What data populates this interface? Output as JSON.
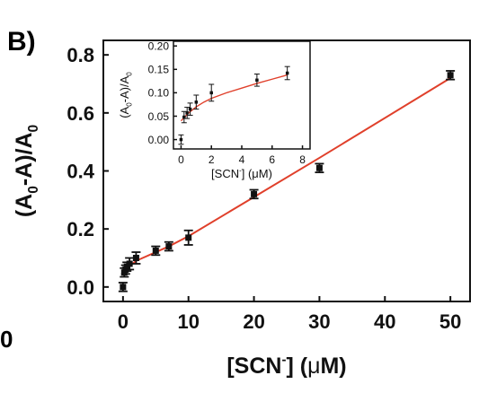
{
  "panel_label": "B)",
  "edge_fragment": "0",
  "chart_data": [
    {
      "type": "scatter",
      "role": "main",
      "xlabel": {
        "bracket": "[SCN",
        "sup": "-",
        "rest": "] (",
        "mu": "μ",
        "unit": "M)"
      },
      "ylabel": {
        "p1": "(A",
        "s1": "0",
        "p2": "-A)/A",
        "s2": "0"
      },
      "xlim": [
        -3,
        53
      ],
      "ylim": [
        -0.05,
        0.85
      ],
      "xticks": [
        0,
        10,
        20,
        30,
        40,
        50
      ],
      "xtick_labels": [
        "0",
        "10",
        "20",
        "30",
        "40",
        "50"
      ],
      "yticks": [
        0.0,
        0.2,
        0.4,
        0.6,
        0.8
      ],
      "ytick_labels": [
        "0.0",
        "0.2",
        "0.4",
        "0.6",
        "0.8"
      ],
      "grid": false,
      "legend": "none",
      "marker_color": "#111111",
      "fit_color": "#e0402b",
      "points": [
        {
          "x": 0,
          "y": 0.0,
          "err": 0.015
        },
        {
          "x": 0.2,
          "y": 0.05,
          "err": 0.015
        },
        {
          "x": 0.4,
          "y": 0.06,
          "err": 0.015
        },
        {
          "x": 0.6,
          "y": 0.07,
          "err": 0.015
        },
        {
          "x": 1,
          "y": 0.08,
          "err": 0.02
        },
        {
          "x": 2,
          "y": 0.1,
          "err": 0.02
        },
        {
          "x": 5,
          "y": 0.125,
          "err": 0.015
        },
        {
          "x": 7,
          "y": 0.14,
          "err": 0.015
        },
        {
          "x": 10,
          "y": 0.17,
          "err": 0.025
        },
        {
          "x": 20,
          "y": 0.32,
          "err": 0.015
        },
        {
          "x": 30,
          "y": 0.41,
          "err": 0.015
        },
        {
          "x": 50,
          "y": 0.73,
          "err": 0.015
        }
      ],
      "fit_points": [
        {
          "x": 0,
          "y": 0.04
        },
        {
          "x": 0.5,
          "y": 0.058
        },
        {
          "x": 1,
          "y": 0.072
        },
        {
          "x": 2,
          "y": 0.09
        },
        {
          "x": 3,
          "y": 0.1
        },
        {
          "x": 5,
          "y": 0.12
        },
        {
          "x": 7,
          "y": 0.14
        },
        {
          "x": 10,
          "y": 0.175
        },
        {
          "x": 20,
          "y": 0.31
        },
        {
          "x": 30,
          "y": 0.445
        },
        {
          "x": 50,
          "y": 0.72
        }
      ]
    },
    {
      "type": "scatter",
      "role": "inset",
      "xlabel": {
        "bracket": "[SCN",
        "sup": "-",
        "rest": "] (",
        "mu": "μ",
        "unit": "M)"
      },
      "ylabel": {
        "p1": "(A",
        "s1": "0",
        "p2": "-A)/A",
        "s2": "0"
      },
      "xlim": [
        -0.5,
        8.5
      ],
      "ylim": [
        -0.02,
        0.21
      ],
      "xticks": [
        0,
        2,
        4,
        6,
        8
      ],
      "xtick_labels": [
        "0",
        "2",
        "4",
        "6",
        "8"
      ],
      "yticks": [
        0.0,
        0.05,
        0.1,
        0.15,
        0.2
      ],
      "ytick_labels": [
        "0.00",
        "0.05",
        "0.10",
        "0.15",
        "0.20"
      ],
      "grid": false,
      "legend": "none",
      "marker_color": "#111111",
      "fit_color": "#e0402b",
      "points": [
        {
          "x": 0,
          "y": 0.0,
          "err": 0.01
        },
        {
          "x": 0.2,
          "y": 0.048,
          "err": 0.012
        },
        {
          "x": 0.4,
          "y": 0.057,
          "err": 0.012
        },
        {
          "x": 0.6,
          "y": 0.065,
          "err": 0.013
        },
        {
          "x": 1,
          "y": 0.08,
          "err": 0.015
        },
        {
          "x": 2,
          "y": 0.1,
          "err": 0.018
        },
        {
          "x": 5,
          "y": 0.127,
          "err": 0.013
        },
        {
          "x": 7,
          "y": 0.142,
          "err": 0.014
        }
      ],
      "fit_points": [
        {
          "x": 0,
          "y": 0.04
        },
        {
          "x": 0.5,
          "y": 0.057
        },
        {
          "x": 1,
          "y": 0.07
        },
        {
          "x": 1.5,
          "y": 0.08
        },
        {
          "x": 2,
          "y": 0.088
        },
        {
          "x": 3,
          "y": 0.1
        },
        {
          "x": 4,
          "y": 0.11
        },
        {
          "x": 5,
          "y": 0.12
        },
        {
          "x": 6,
          "y": 0.129
        },
        {
          "x": 7,
          "y": 0.138
        }
      ]
    }
  ]
}
